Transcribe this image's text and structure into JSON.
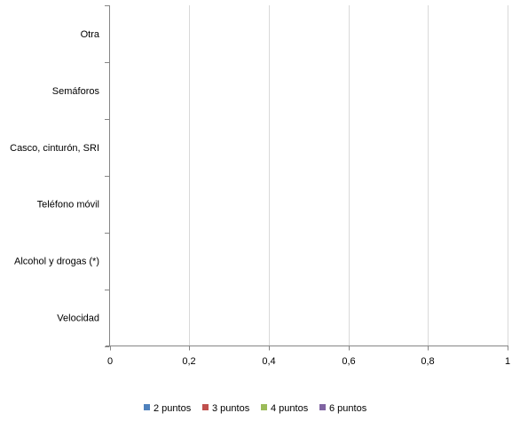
{
  "chart_data": {
    "type": "bar",
    "orientation": "horizontal",
    "stacked": true,
    "categories": [
      "Velocidad",
      "Alcohol y drogas (*)",
      "Teléfono móvil",
      "Casco, cinturón, SRI",
      "Semáforos",
      "Otra"
    ],
    "series": [
      {
        "name": "2 puntos",
        "color": "#4f81bd",
        "values": [
          0,
          0,
          0,
          0,
          0,
          0
        ]
      },
      {
        "name": "3 puntos",
        "color": "#c0504d",
        "values": [
          0,
          0,
          0,
          0,
          0,
          0
        ]
      },
      {
        "name": "4 puntos",
        "color": "#9bbb59",
        "values": [
          0,
          0,
          0,
          0,
          0,
          0
        ]
      },
      {
        "name": "6 puntos",
        "color": "#8064a2",
        "values": [
          0,
          0,
          0,
          0,
          0,
          0
        ]
      }
    ],
    "x_ticks": [
      "0",
      "0,2",
      "0,4",
      "0,6",
      "0,8",
      "1"
    ],
    "xlim": [
      0,
      1
    ],
    "grid": true,
    "legend_position": "bottom"
  }
}
